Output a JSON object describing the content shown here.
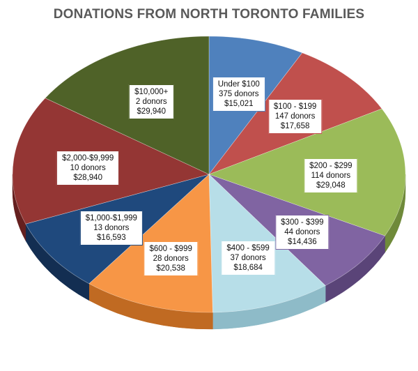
{
  "chart_data": {
    "type": "pie",
    "title": "DONATIONS FROM NORTH TORONTO FAMILIES",
    "legend": "none",
    "slices": [
      {
        "label": "Under $100",
        "donors": "375 donors",
        "amount": "$15,021",
        "value": 15021,
        "color": "#4F81BD",
        "dark": "#2F5A8E"
      },
      {
        "label": "$100 - $199",
        "donors": "147 donors",
        "amount": "$17,658",
        "value": 17658,
        "color": "#C0504D",
        "dark": "#8E2F2C"
      },
      {
        "label": "$200 - $299",
        "donors": "114 donors",
        "amount": "$29,048",
        "value": 29048,
        "color": "#9BBB59",
        "dark": "#6F8A3A"
      },
      {
        "label": "$300 - $399",
        "donors": "44 donors",
        "amount": "$14,436",
        "value": 14436,
        "color": "#8064A2",
        "dark": "#5A4478"
      },
      {
        "label": "$400 - $599",
        "donors": "37 donors",
        "amount": "$18,684",
        "value": 18684,
        "color": "#B7DEE8",
        "dark": "#8EBBC8"
      },
      {
        "label": "$600 - $999",
        "donors": "28 donors",
        "amount": "$20,538",
        "value": 20538,
        "color": "#F79646",
        "dark": "#C06A22"
      },
      {
        "label": "$1,000-$1,999",
        "donors": "13 donors",
        "amount": "$16,593",
        "value": 16593,
        "color": "#1F497D",
        "dark": "#132E52"
      },
      {
        "label": "$2,000-$9,999",
        "donors": "10 donors",
        "amount": "$28,940",
        "value": 28940,
        "color": "#943634",
        "dark": "#65201F"
      },
      {
        "label": "$10,000+",
        "donors": "2 donors",
        "amount": "$29,940",
        "value": 29940,
        "color": "#4F6228",
        "dark": "#343F18"
      }
    ]
  }
}
